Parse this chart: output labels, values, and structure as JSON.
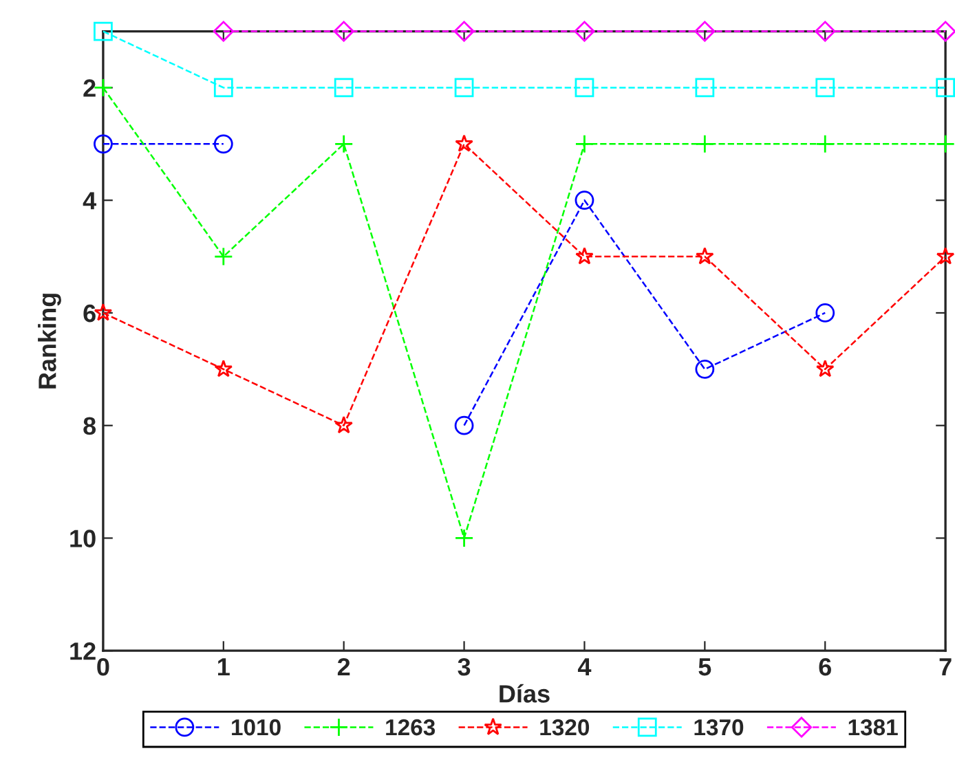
{
  "chart_data": {
    "type": "line",
    "xlabel": "Días",
    "ylabel": "Ranking",
    "x": [
      0,
      1,
      2,
      3,
      4,
      5,
      6,
      7
    ],
    "series": [
      {
        "name": "1010",
        "color": "#0000ff",
        "marker": "circle",
        "values": [
          3,
          3,
          null,
          8,
          4,
          7,
          6,
          null
        ]
      },
      {
        "name": "1263",
        "color": "#00ff00",
        "marker": "cross",
        "values": [
          2,
          5,
          3,
          10,
          3,
          3,
          3,
          3
        ]
      },
      {
        "name": "1320",
        "color": "#ff0000",
        "marker": "star",
        "values": [
          6,
          7,
          8,
          3,
          5,
          5,
          7,
          5
        ]
      },
      {
        "name": "1370",
        "color": "#00ffff",
        "marker": "square",
        "values": [
          1,
          2,
          2,
          2,
          2,
          2,
          2,
          2
        ]
      },
      {
        "name": "1381",
        "color": "#ff00ff",
        "marker": "diamond",
        "values": [
          null,
          1,
          1,
          1,
          1,
          1,
          1,
          1
        ]
      }
    ],
    "xlim": [
      0,
      7
    ],
    "xticks": [
      0,
      1,
      2,
      3,
      4,
      5,
      6,
      7
    ],
    "ylim": [
      12,
      1
    ],
    "yticks": [
      2,
      4,
      6,
      8,
      10,
      12
    ],
    "line_style": "dashed",
    "grid": false,
    "legend": "bottom"
  }
}
